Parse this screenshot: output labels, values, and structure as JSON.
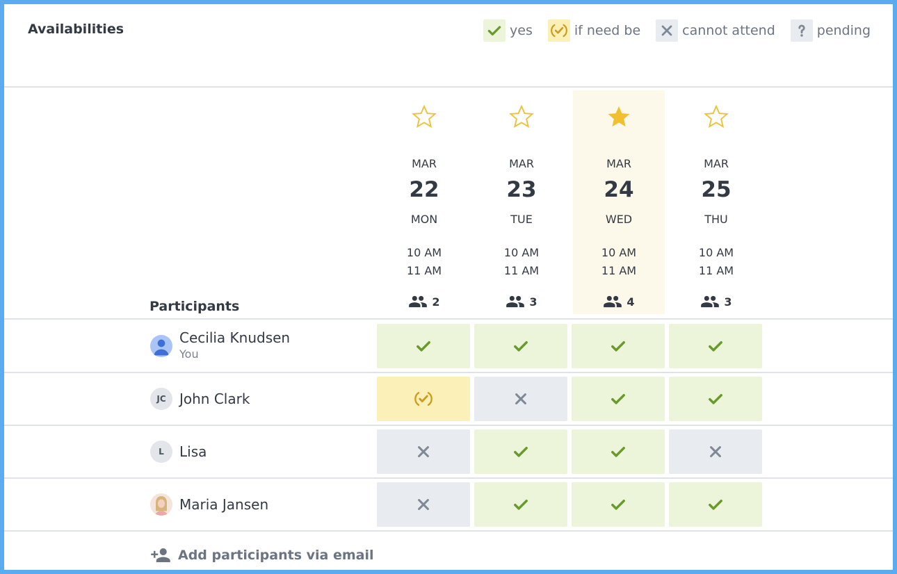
{
  "header": {
    "title": "Availabilities"
  },
  "legend": [
    {
      "label": "yes"
    },
    {
      "label": "if need be"
    },
    {
      "label": "cannot attend"
    },
    {
      "label": "pending"
    }
  ],
  "participants_label": "Participants",
  "columns": [
    {
      "month": "MAR",
      "day": "22",
      "weekday": "MON",
      "start": "10 AM",
      "end": "11 AM",
      "count": 2,
      "starred": false
    },
    {
      "month": "MAR",
      "day": "23",
      "weekday": "TUE",
      "start": "10 AM",
      "end": "11 AM",
      "count": 3,
      "starred": false
    },
    {
      "month": "MAR",
      "day": "24",
      "weekday": "WED",
      "start": "10 AM",
      "end": "11 AM",
      "count": 4,
      "starred": true
    },
    {
      "month": "MAR",
      "day": "25",
      "weekday": "THU",
      "start": "10 AM",
      "end": "11 AM",
      "count": 3,
      "starred": false
    }
  ],
  "participants": [
    {
      "name": "Cecilia Knudsen",
      "subtitle": "You",
      "availability": [
        "yes",
        "yes",
        "yes",
        "yes"
      ]
    },
    {
      "name": "John Clark",
      "initials": "JC",
      "availability": [
        "if need be",
        "cannot attend",
        "yes",
        "yes"
      ]
    },
    {
      "name": "Lisa",
      "initials": "L",
      "availability": [
        "cannot attend",
        "yes",
        "yes",
        "cannot attend"
      ]
    },
    {
      "name": "Maria Jansen",
      "photo": true,
      "availability": [
        "cannot attend",
        "yes",
        "yes",
        "yes"
      ]
    }
  ],
  "add_participants": "Add participants via email"
}
